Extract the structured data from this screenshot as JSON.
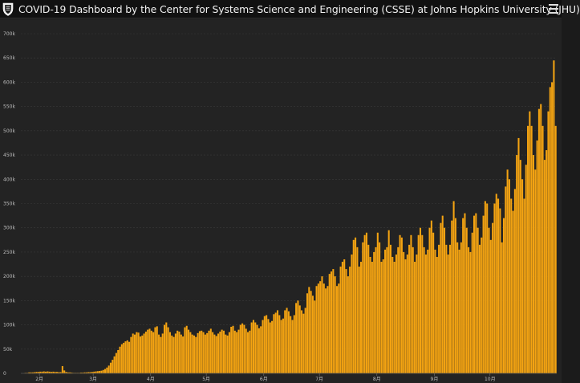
{
  "app": {
    "title": "COVID-19 Dashboard by the Center for Systems Science and Engineering (CSSE) at Johns Hopkins University (JHU)",
    "logo_icon": "university-shield-icon",
    "menu_icon": "hamburger-menu-icon"
  },
  "colors": {
    "bar": "#f3a312",
    "background": "#232323",
    "grid": "#3a3a3a",
    "axis_text": "#bdbdbd"
  },
  "chart_data": {
    "type": "bar",
    "title": "",
    "xlabel": "",
    "ylabel": "",
    "grid": true,
    "ylim": [
      0,
      700000
    ],
    "y_ticks": [
      {
        "value": 0,
        "label": "0"
      },
      {
        "value": 50000,
        "label": "50k"
      },
      {
        "value": 100000,
        "label": "100k"
      },
      {
        "value": 150000,
        "label": "150k"
      },
      {
        "value": 200000,
        "label": "200k"
      },
      {
        "value": 250000,
        "label": "250k"
      },
      {
        "value": 300000,
        "label": "300k"
      },
      {
        "value": 350000,
        "label": "350k"
      },
      {
        "value": 400000,
        "label": "400k"
      },
      {
        "value": 450000,
        "label": "450k"
      },
      {
        "value": 500000,
        "label": "500k"
      },
      {
        "value": 550000,
        "label": "550k"
      },
      {
        "value": 600000,
        "label": "600k"
      },
      {
        "value": 650000,
        "label": "650k"
      },
      {
        "value": 700000,
        "label": "700k"
      }
    ],
    "x_start": "2020-01-22",
    "x_ticks": [
      {
        "date": "2020-02-01",
        "label": "2月"
      },
      {
        "date": "2020-03-01",
        "label": "3月"
      },
      {
        "date": "2020-04-01",
        "label": "4月"
      },
      {
        "date": "2020-05-01",
        "label": "5月"
      },
      {
        "date": "2020-06-01",
        "label": "6月"
      },
      {
        "date": "2020-07-01",
        "label": "7月"
      },
      {
        "date": "2020-08-01",
        "label": "8月"
      },
      {
        "date": "2020-09-01",
        "label": "9月"
      },
      {
        "date": "2020-10-01",
        "label": "10月"
      }
    ],
    "series": [
      {
        "values": [
          0,
          0,
          1000,
          1000,
          2000,
          2000,
          2000,
          2500,
          3000,
          3000,
          3500,
          3500,
          4000,
          3500,
          4000,
          3500,
          3000,
          3500,
          3000,
          3000,
          2500,
          2500,
          15000,
          6000,
          3000,
          2000,
          2000,
          1500,
          1000,
          1000,
          1000,
          1000,
          1500,
          1500,
          2000,
          2000,
          2500,
          2500,
          3000,
          3500,
          4000,
          4500,
          5000,
          5500,
          7000,
          9000,
          12000,
          16000,
          22000,
          28000,
          35000,
          42000,
          48000,
          55000,
          60000,
          63000,
          66000,
          68000,
          65000,
          75000,
          82000,
          80000,
          85000,
          84000,
          76000,
          78000,
          82000,
          86000,
          90000,
          92000,
          88000,
          85000,
          95000,
          97000,
          80000,
          75000,
          82000,
          100000,
          105000,
          95000,
          85000,
          78000,
          75000,
          82000,
          88000,
          86000,
          80000,
          76000,
          95000,
          98000,
          90000,
          85000,
          80000,
          78000,
          75000,
          83000,
          87000,
          88000,
          85000,
          80000,
          83000,
          88000,
          92000,
          85000,
          80000,
          77000,
          82000,
          86000,
          90000,
          88000,
          80000,
          78000,
          85000,
          96000,
          98000,
          88000,
          85000,
          90000,
          100000,
          103000,
          100000,
          92000,
          85000,
          88000,
          105000,
          110000,
          105000,
          100000,
          93000,
          97000,
          110000,
          118000,
          120000,
          112000,
          105000,
          108000,
          122000,
          125000,
          130000,
          120000,
          110000,
          113000,
          130000,
          135000,
          128000,
          118000,
          110000,
          120000,
          145000,
          150000,
          140000,
          130000,
          123000,
          135000,
          165000,
          178000,
          170000,
          160000,
          150000,
          180000,
          185000,
          190000,
          200000,
          185000,
          175000,
          180000,
          205000,
          210000,
          215000,
          200000,
          180000,
          185000,
          220000,
          230000,
          235000,
          215000,
          200000,
          220000,
          245000,
          275000,
          280000,
          260000,
          220000,
          230000,
          270000,
          285000,
          290000,
          265000,
          240000,
          230000,
          250000,
          260000,
          290000,
          270000,
          230000,
          235000,
          255000,
          260000,
          295000,
          265000,
          240000,
          230000,
          245000,
          260000,
          285000,
          280000,
          250000,
          235000,
          245000,
          265000,
          285000,
          260000,
          230000,
          245000,
          285000,
          300000,
          285000,
          260000,
          245000,
          255000,
          300000,
          315000,
          290000,
          255000,
          240000,
          265000,
          310000,
          325000,
          300000,
          265000,
          245000,
          265000,
          315000,
          355000,
          320000,
          270000,
          255000,
          270000,
          320000,
          330000,
          300000,
          260000,
          250000,
          290000,
          325000,
          330000,
          300000,
          265000,
          280000,
          325000,
          355000,
          350000,
          300000,
          275000,
          310000,
          350000,
          370000,
          360000,
          340000,
          270000,
          320000,
          385000,
          420000,
          400000,
          360000,
          335000,
          380000,
          450000,
          485000,
          440000,
          400000,
          360000,
          430000,
          510000,
          540000,
          510000,
          450000,
          420000,
          480000,
          545000,
          555000,
          510000,
          440000,
          460000,
          540000,
          590000,
          600000,
          645000,
          510000
        ]
      }
    ]
  }
}
